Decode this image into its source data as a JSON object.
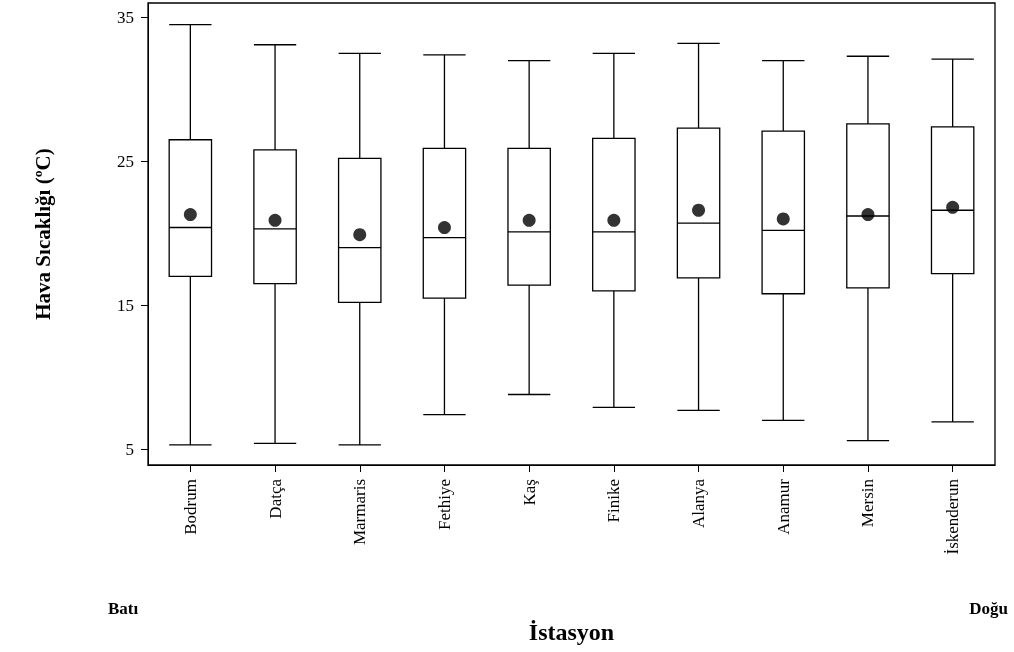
{
  "chart_data": {
    "type": "box",
    "xlabel": "İstasyon",
    "ylabel": "Hava Sıcaklığı (ºC)",
    "annotations": [
      "Batı",
      "Doğu"
    ],
    "categories": [
      "Bodrum",
      "Datça",
      "Marmaris",
      "Fethiye",
      "Kaş",
      "Finike",
      "Alanya",
      "Anamur",
      "Mersin",
      "İskenderun"
    ],
    "ylim": [
      3.9,
      36
    ],
    "yticks": [
      5,
      15,
      25,
      35
    ],
    "grid": false,
    "series": [
      {
        "type": "box",
        "color": "#000000",
        "boxes": [
          {
            "low": 5.3,
            "q1": 17.0,
            "median": 20.4,
            "q3": 26.5,
            "high": 34.5
          },
          {
            "low": 5.4,
            "q1": 16.5,
            "median": 20.3,
            "q3": 25.8,
            "high": 33.1
          },
          {
            "low": 5.3,
            "q1": 15.2,
            "median": 19.0,
            "q3": 25.2,
            "high": 32.5
          },
          {
            "low": 7.4,
            "q1": 15.5,
            "median": 19.7,
            "q3": 25.9,
            "high": 32.4
          },
          {
            "low": 8.8,
            "q1": 16.4,
            "median": 20.1,
            "q3": 25.9,
            "high": 32.0
          },
          {
            "low": 7.9,
            "q1": 16.0,
            "median": 20.1,
            "q3": 26.6,
            "high": 32.5
          },
          {
            "low": 7.7,
            "q1": 16.9,
            "median": 20.7,
            "q3": 27.3,
            "high": 33.2
          },
          {
            "low": 7.0,
            "q1": 15.8,
            "median": 20.2,
            "q3": 27.1,
            "high": 32.0
          },
          {
            "low": 5.6,
            "q1": 16.2,
            "median": 21.2,
            "q3": 27.6,
            "high": 32.3
          },
          {
            "low": 6.9,
            "q1": 17.2,
            "median": 21.6,
            "q3": 27.4,
            "high": 32.1
          }
        ]
      },
      {
        "type": "scatter",
        "color": "#000000",
        "marker": "circle",
        "x": [
          "Bodrum",
          "Datça",
          "Marmaris",
          "Fethiye",
          "Kaş",
          "Finike",
          "Alanya",
          "Anamur",
          "Mersin",
          "İskenderun"
        ],
        "values": [
          21.3,
          20.9,
          19.9,
          20.4,
          20.9,
          20.9,
          21.6,
          21.0,
          21.3,
          21.8
        ]
      }
    ]
  }
}
